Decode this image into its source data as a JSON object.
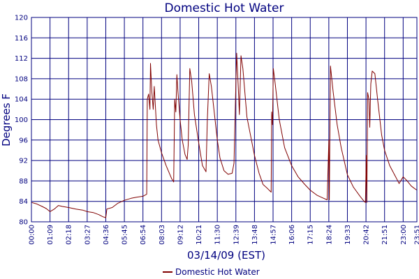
{
  "chart_data": {
    "type": "line",
    "title": "Domestic Hot Water",
    "xlabel": "03/14/09 (EST)",
    "ylabel": "Degrees F",
    "ylim": [
      80,
      120
    ],
    "yticks": [
      80,
      84,
      88,
      92,
      96,
      100,
      104,
      108,
      112,
      116,
      120
    ],
    "xlim": [
      "00:00",
      "23:51"
    ],
    "xticks": [
      "00:00",
      "01:09",
      "02:18",
      "03:27",
      "04:36",
      "05:45",
      "06:54",
      "08:03",
      "09:12",
      "10:21",
      "11:30",
      "12:39",
      "13:48",
      "14:57",
      "16:06",
      "17:15",
      "18:24",
      "19:33",
      "20:42",
      "21:51",
      "23:00",
      "23:51"
    ],
    "grid": true,
    "legend": "bottom",
    "series": [
      {
        "name": "Domestic Hot Water",
        "color": "#800000",
        "points": [
          [
            "00:00",
            83.8
          ],
          [
            "00:20",
            83.5
          ],
          [
            "00:40",
            83.0
          ],
          [
            "00:55",
            82.6
          ],
          [
            "01:09",
            82.0
          ],
          [
            "01:25",
            82.5
          ],
          [
            "01:40",
            83.2
          ],
          [
            "01:55",
            83.0
          ],
          [
            "02:18",
            82.8
          ],
          [
            "02:45",
            82.5
          ],
          [
            "03:10",
            82.3
          ],
          [
            "03:27",
            82.0
          ],
          [
            "03:50",
            81.8
          ],
          [
            "04:10",
            81.4
          ],
          [
            "04:25",
            81.0
          ],
          [
            "04:36",
            80.8
          ],
          [
            "04:40",
            82.5
          ],
          [
            "05:00",
            82.8
          ],
          [
            "05:20",
            83.6
          ],
          [
            "05:45",
            84.2
          ],
          [
            "06:10",
            84.6
          ],
          [
            "06:30",
            84.8
          ],
          [
            "06:54",
            85.0
          ],
          [
            "07:08",
            85.4
          ],
          [
            "07:10",
            104.0
          ],
          [
            "07:15",
            105.0
          ],
          [
            "07:20",
            102.0
          ],
          [
            "07:22",
            111.0
          ],
          [
            "07:27",
            105.5
          ],
          [
            "07:32",
            102.0
          ],
          [
            "07:36",
            106.5
          ],
          [
            "07:44",
            99.0
          ],
          [
            "07:50",
            96.0
          ],
          [
            "08:03",
            93.5
          ],
          [
            "08:20",
            91.0
          ],
          [
            "08:40",
            88.5
          ],
          [
            "08:48",
            87.8
          ],
          [
            "08:52",
            104.0
          ],
          [
            "08:56",
            101.5
          ],
          [
            "09:00",
            108.8
          ],
          [
            "09:04",
            105.5
          ],
          [
            "09:12",
            100.0
          ],
          [
            "09:20",
            96.0
          ],
          [
            "09:30",
            93.2
          ],
          [
            "09:38",
            92.2
          ],
          [
            "09:42",
            95.0
          ],
          [
            "09:48",
            110.0
          ],
          [
            "09:55",
            107.5
          ],
          [
            "10:05",
            101.0
          ],
          [
            "10:21",
            95.5
          ],
          [
            "10:35",
            91.0
          ],
          [
            "10:48",
            89.8
          ],
          [
            "10:53",
            100.0
          ],
          [
            "11:00",
            109.0
          ],
          [
            "11:08",
            106.5
          ],
          [
            "11:30",
            96.0
          ],
          [
            "11:40",
            92.5
          ],
          [
            "11:55",
            90.0
          ],
          [
            "12:10",
            89.3
          ],
          [
            "12:25",
            89.5
          ],
          [
            "12:32",
            91.5
          ],
          [
            "12:38",
            105.0
          ],
          [
            "12:42",
            113.0
          ],
          [
            "12:48",
            106.0
          ],
          [
            "12:52",
            101.0
          ],
          [
            "12:58",
            112.5
          ],
          [
            "13:05",
            110.0
          ],
          [
            "13:20",
            100.5
          ],
          [
            "13:48",
            93.0
          ],
          [
            "14:05",
            89.5
          ],
          [
            "14:20",
            87.3
          ],
          [
            "14:35",
            86.6
          ],
          [
            "14:50",
            85.8
          ],
          [
            "14:52",
            101.5
          ],
          [
            "14:55",
            99.0
          ],
          [
            "14:58",
            110.0
          ],
          [
            "15:05",
            107.0
          ],
          [
            "15:20",
            100.0
          ],
          [
            "15:40",
            94.5
          ],
          [
            "16:06",
            91.0
          ],
          [
            "16:30",
            88.8
          ],
          [
            "16:55",
            87.3
          ],
          [
            "17:15",
            86.2
          ],
          [
            "17:40",
            85.2
          ],
          [
            "18:05",
            84.6
          ],
          [
            "18:18",
            84.3
          ],
          [
            "18:24",
            96.0
          ],
          [
            "18:26",
            84.3
          ],
          [
            "18:30",
            110.5
          ],
          [
            "18:40",
            105.5
          ],
          [
            "18:55",
            99.0
          ],
          [
            "19:10",
            94.5
          ],
          [
            "19:33",
            89.2
          ],
          [
            "19:55",
            86.8
          ],
          [
            "20:20",
            85.0
          ],
          [
            "20:35",
            84.0
          ],
          [
            "20:40",
            83.8
          ],
          [
            "20:43",
            93.0
          ],
          [
            "20:45",
            83.8
          ],
          [
            "20:48",
            105.3
          ],
          [
            "20:53",
            104.0
          ],
          [
            "20:56",
            98.5
          ],
          [
            "21:00",
            107.0
          ],
          [
            "21:05",
            109.5
          ],
          [
            "21:15",
            109.0
          ],
          [
            "21:25",
            104.0
          ],
          [
            "21:40",
            97.0
          ],
          [
            "21:51",
            94.0
          ],
          [
            "22:10",
            91.0
          ],
          [
            "22:35",
            88.5
          ],
          [
            "22:45",
            87.5
          ],
          [
            "23:00",
            88.8
          ],
          [
            "23:15",
            88.0
          ],
          [
            "23:30",
            87.0
          ],
          [
            "23:40",
            86.6
          ],
          [
            "23:51",
            86.2
          ]
        ]
      }
    ]
  }
}
